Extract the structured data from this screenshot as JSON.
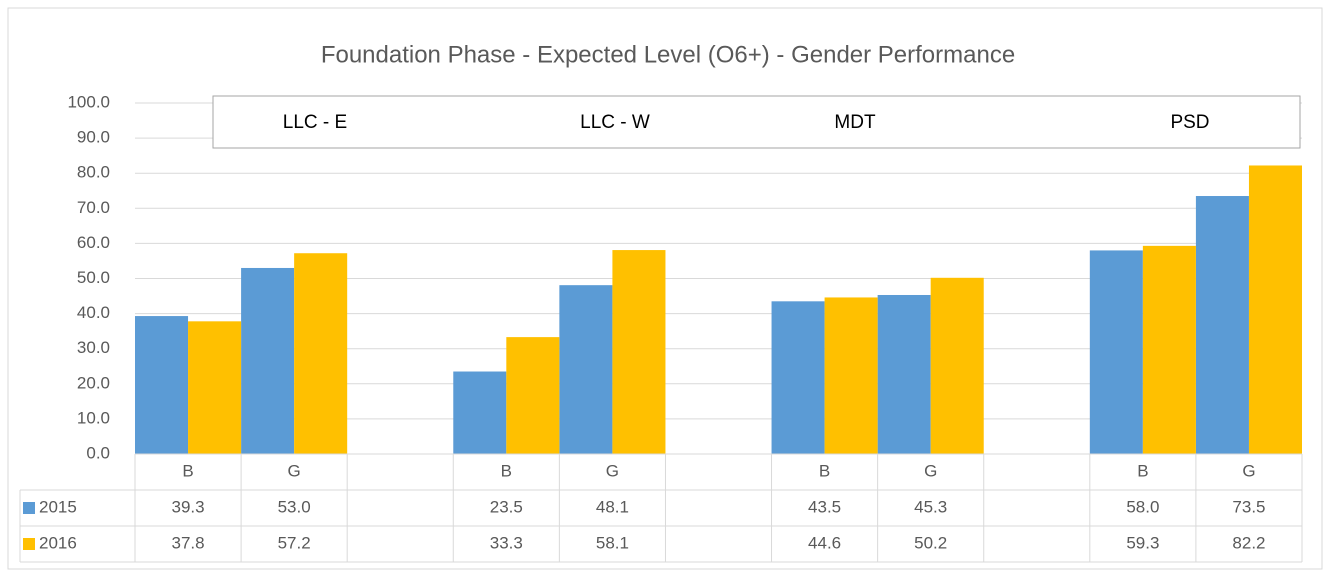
{
  "chart_data": {
    "type": "bar",
    "title": "Foundation Phase - Expected Level (O6+) - Gender Performance",
    "groups": [
      "LLC - E",
      "LLC - W",
      "MDT",
      "PSD"
    ],
    "categories": [
      "B",
      "G",
      null,
      "B",
      "G",
      null,
      "B",
      "G",
      null,
      "B",
      "G"
    ],
    "series": [
      {
        "name": "2015",
        "color": "#5b9bd5",
        "values": [
          39.3,
          53.0,
          null,
          23.5,
          48.1,
          null,
          43.5,
          45.3,
          null,
          58.0,
          73.5
        ],
        "value_labels": [
          "39.3",
          "53.0",
          null,
          "23.5",
          "48.1",
          null,
          "43.5",
          "45.3",
          null,
          "58.0",
          "73.5"
        ]
      },
      {
        "name": "2016",
        "color": "#ffc000",
        "values": [
          37.8,
          57.2,
          null,
          33.3,
          58.1,
          null,
          44.6,
          50.2,
          null,
          59.3,
          82.2
        ],
        "value_labels": [
          "37.8",
          "57.2",
          null,
          "33.3",
          "58.1",
          null,
          "44.6",
          "50.2",
          null,
          "59.3",
          "82.2"
        ]
      }
    ],
    "ylim": [
      0,
      100
    ],
    "yticks": [
      {
        "value": 0,
        "label": "0.0"
      },
      {
        "value": 10,
        "label": "10.0"
      },
      {
        "value": 20,
        "label": "20.0"
      },
      {
        "value": 30,
        "label": "30.0"
      },
      {
        "value": 40,
        "label": "40.0"
      },
      {
        "value": 50,
        "label": "50.0"
      },
      {
        "value": 60,
        "label": "60.0"
      },
      {
        "value": 70,
        "label": "70.0"
      },
      {
        "value": 80,
        "label": "80.0"
      },
      {
        "value": 90,
        "label": "90.0"
      },
      {
        "value": 100,
        "label": "100.0"
      }
    ],
    "grid": true
  }
}
